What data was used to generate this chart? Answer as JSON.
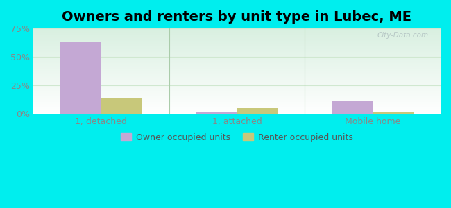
{
  "title": "Owners and renters by unit type in Lubec, ME",
  "categories": [
    "1, detached",
    "1, attached",
    "Mobile home"
  ],
  "owner_values": [
    63,
    1.5,
    11
  ],
  "renter_values": [
    14,
    5,
    2
  ],
  "owner_color": "#c4a8d4",
  "renter_color": "#c8c87a",
  "ylim": [
    0,
    75
  ],
  "yticks": [
    0,
    25,
    50,
    75
  ],
  "ytick_labels": [
    "0%",
    "25%",
    "50%",
    "75%"
  ],
  "bar_width": 0.3,
  "outer_bg": "#00eeee",
  "plot_bg_top": "#f0f8f0",
  "plot_bg_bottom": "#c8eedc",
  "watermark": "City-Data.com",
  "legend_owner": "Owner occupied units",
  "legend_renter": "Renter occupied units",
  "title_fontsize": 14,
  "axis_fontsize": 9,
  "legend_fontsize": 9,
  "grid_color": "#d0e8d0",
  "separator_color": "#aaccaa"
}
